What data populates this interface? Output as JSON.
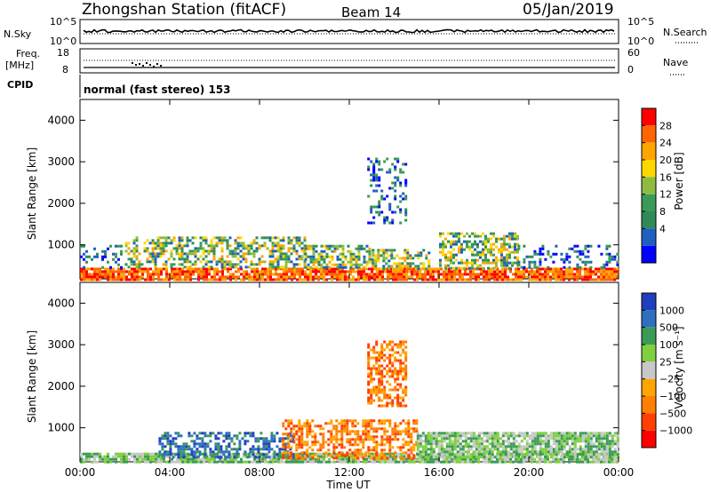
{
  "header": {
    "station": "Zhongshan Station (fitACF)",
    "beam": "Beam 14",
    "date": "05/Jan/2019"
  },
  "top_panels": {
    "nsky_label": "N.Sky",
    "nsky_ticks": [
      "10^5",
      "10^0"
    ],
    "nsearch_label": "N.Search",
    "nsearch_ticks": [
      "10^5",
      "10^0"
    ],
    "freq_label": "Freq.",
    "freq_unit": "[MHz]",
    "freq_ticks": [
      "18",
      "8"
    ],
    "nave_label": "Nave",
    "nave_ticks": [
      "60",
      "0"
    ],
    "cpid_label": "CPID",
    "cpid_text": "normal (fast stereo) 153"
  },
  "chart_data": [
    {
      "type": "heatmap",
      "title": "",
      "xlabel": "Time UT",
      "ylabel": "Slant Range [km]",
      "xlim": [
        0,
        24
      ],
      "ylim": [
        180,
        4500
      ],
      "yticks": [
        1000,
        2000,
        3000,
        4000
      ],
      "colorbar": {
        "label": "Power [dB]",
        "ticks": [
          "28",
          "24",
          "20",
          "16",
          "12",
          "8",
          "4"
        ],
        "colors": [
          "#ff0000",
          "#ff6600",
          "#ffa500",
          "#ffd700",
          "#8fbc3f",
          "#3b9b56",
          "#2e8b57",
          "#1f5fbf",
          "#0000ff"
        ]
      },
      "coverage": [
        {
          "t0": 0.0,
          "t1": 24.0,
          "r0": 180,
          "r1": 450,
          "level": "high"
        },
        {
          "t0": 0.0,
          "t1": 2.0,
          "r0": 450,
          "r1": 1000,
          "level": "low"
        },
        {
          "t0": 2.0,
          "t1": 10.0,
          "r0": 450,
          "r1": 1200,
          "level": "mid"
        },
        {
          "t0": 10.0,
          "t1": 13.0,
          "r0": 450,
          "r1": 1000,
          "level": "mid"
        },
        {
          "t0": 12.8,
          "t1": 14.5,
          "r0": 1500,
          "r1": 3100,
          "level": "low"
        },
        {
          "t0": 13.0,
          "t1": 15.5,
          "r0": 450,
          "r1": 900,
          "level": "mid"
        },
        {
          "t0": 16.0,
          "t1": 19.5,
          "r0": 450,
          "r1": 1300,
          "level": "mid"
        },
        {
          "t0": 19.5,
          "t1": 24.0,
          "r0": 450,
          "r1": 1000,
          "level": "low"
        }
      ]
    },
    {
      "type": "heatmap",
      "title": "",
      "xlabel": "Time UT",
      "ylabel": "Slant Range [km]",
      "xlim": [
        0,
        24
      ],
      "ylim": [
        180,
        4500
      ],
      "yticks": [
        1000,
        2000,
        3000,
        4000
      ],
      "xticks": [
        "00:00",
        "04:00",
        "08:00",
        "12:00",
        "16:00",
        "20:00",
        "00:00"
      ],
      "colorbar": {
        "label": "Velocity [m s⁻¹]",
        "ticks": [
          "1000",
          "500",
          "100",
          "25",
          "−25",
          "−100",
          "−500",
          "−1000"
        ],
        "colors": [
          "#1f3fbf",
          "#2e6fbf",
          "#3b9b56",
          "#7fcf3f",
          "#c8c8c8",
          "#ffa500",
          "#ff8000",
          "#ff4000",
          "#ff0000"
        ]
      },
      "coverage": [
        {
          "t0": 0.0,
          "t1": 24.0,
          "r0": 180,
          "r1": 400,
          "level": "green"
        },
        {
          "t0": 3.5,
          "t1": 9.5,
          "r0": 300,
          "r1": 900,
          "level": "blue"
        },
        {
          "t0": 9.0,
          "t1": 15.0,
          "r0": 300,
          "r1": 1200,
          "level": "orange"
        },
        {
          "t0": 12.8,
          "t1": 14.5,
          "r0": 1500,
          "r1": 3100,
          "level": "orange"
        },
        {
          "t0": 15.0,
          "t1": 24.0,
          "r0": 300,
          "r1": 900,
          "level": "green"
        }
      ]
    }
  ]
}
